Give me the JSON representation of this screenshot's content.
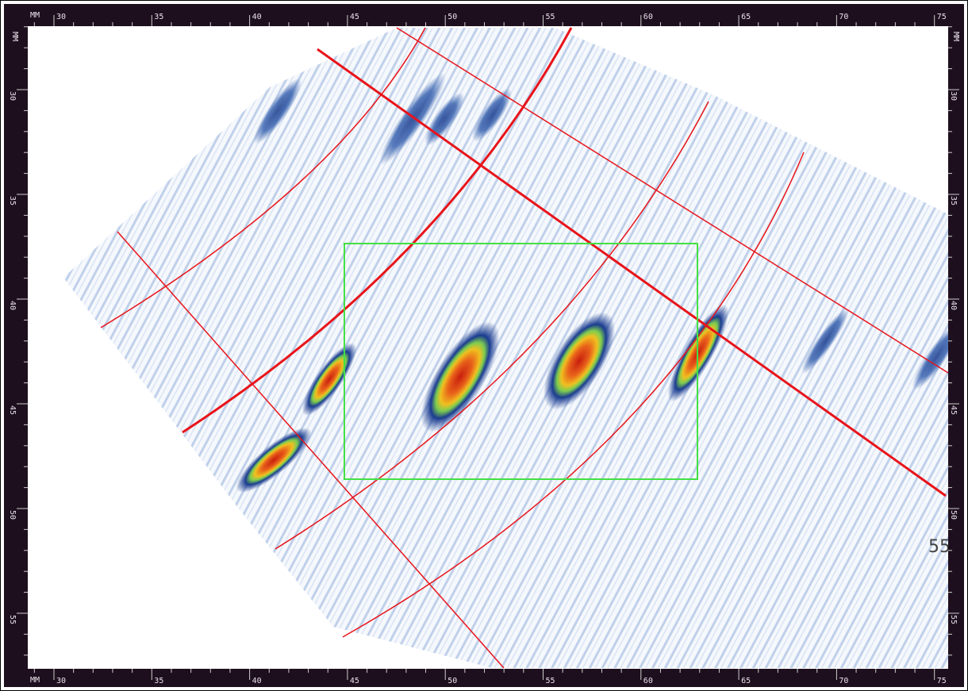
{
  "rulers": {
    "unit": "MM",
    "top": [
      "30",
      "35",
      "40",
      "45",
      "50",
      "55",
      "60",
      "65",
      "70",
      "75"
    ],
    "left": [
      "30",
      "35",
      "40",
      "45",
      "50",
      "55"
    ]
  },
  "overlay_label": "55"
}
